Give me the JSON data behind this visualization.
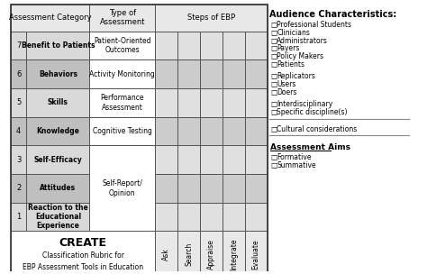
{
  "rows": [
    {
      "num": 7,
      "category": "Benefit to Patients",
      "assessment": "Patient-Oriented\nOutcomes",
      "bg": "#d9d9d9"
    },
    {
      "num": 6,
      "category": "Behaviors",
      "assessment": "Activity Monitoring",
      "bg": "#bfbfbf"
    },
    {
      "num": 5,
      "category": "Skills",
      "assessment": "Performance\nAssessment",
      "bg": "#d9d9d9"
    },
    {
      "num": 4,
      "category": "Knowledge",
      "assessment": "Cognitive Testing",
      "bg": "#bfbfbf"
    },
    {
      "num": 3,
      "category": "Self-Efficacy",
      "assessment": "Self-Report/\nOpinion",
      "bg": "#d9d9d9"
    },
    {
      "num": 2,
      "category": "Attitudes",
      "assessment": "Self-Report/\nOpinion",
      "bg": "#bfbfbf"
    },
    {
      "num": 1,
      "category": "Reaction to the\nEducational\nExperience",
      "assessment": "Self-Report/\nOpinion",
      "bg": "#d9d9d9"
    }
  ],
  "ebp_steps": [
    "Ask",
    "Search",
    "Appraise",
    "Integrate",
    "Evaluate"
  ],
  "header_bg": "#e8e8e8",
  "grid_color": "#555555",
  "light_gray": "#d9d9d9",
  "medium_gray": "#bfbfbf",
  "audience": [
    "Professional Students",
    "Clinicians",
    "Administrators",
    "Payers",
    "Policy Makers",
    "Patients"
  ],
  "audience2": [
    "Replicators",
    "Users",
    "Doers"
  ],
  "audience3": [
    "Interdisciplinary",
    "Specific discipline(s)"
  ],
  "audience4": [
    "Cultural considerations"
  ],
  "assessment_aims": [
    "Formative",
    "Summative"
  ],
  "create_title": "CREATE",
  "create_sub1": "Classification Rubric for",
  "create_sub2": "EBP Assessment Tools in Education",
  "audience_title": "Audience Characteristics:"
}
